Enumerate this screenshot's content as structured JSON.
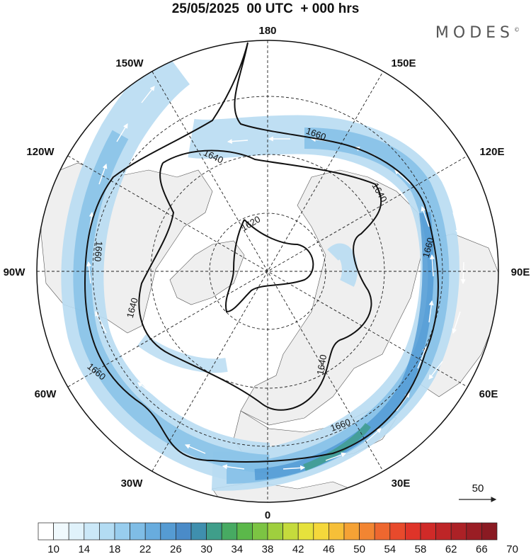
{
  "title": "25/05/2025  00 UTC  + 000 hrs",
  "brand": "MODES",
  "brand_mark": "©",
  "map": {
    "projection": "north polar stereographic",
    "longitude_labels": [
      {
        "text": "180",
        "lon": 180
      },
      {
        "text": "150E",
        "lon": 150
      },
      {
        "text": "120E",
        "lon": 120
      },
      {
        "text": "90E",
        "lon": 90
      },
      {
        "text": "60E",
        "lon": 60
      },
      {
        "text": "30E",
        "lon": 30
      },
      {
        "text": "0",
        "lon": 0
      },
      {
        "text": "30W",
        "lon": -30
      },
      {
        "text": "60W",
        "lon": -60
      },
      {
        "text": "90W",
        "lon": -90
      },
      {
        "text": "120W",
        "lon": -120
      },
      {
        "text": "150W",
        "lon": -150
      }
    ],
    "contour_labels": [
      "1660",
      "1640",
      "1620",
      "1660",
      "1640",
      "1660",
      "1640",
      "1660",
      "1640",
      "1660"
    ],
    "colors": {
      "land": "#efefef",
      "ocean": "#ffffff",
      "jet_light": "#b8dcf2",
      "jet_mid": "#7fbde6",
      "jet_dark": "#4f98d3",
      "contour": "#111111"
    }
  },
  "vector_legend": {
    "label": "50"
  },
  "colorbar": {
    "labels": [
      "10",
      "14",
      "18",
      "22",
      "26",
      "30",
      "34",
      "38",
      "42",
      "46",
      "50",
      "54",
      "58",
      "62",
      "66",
      "70"
    ],
    "colors": [
      "#ffffff",
      "#f0f9fd",
      "#e0f2fb",
      "#cbe8f8",
      "#b3dcf3",
      "#98cdee",
      "#7fbde6",
      "#68acde",
      "#559bd3",
      "#4a8bc8",
      "#3f8fae",
      "#3f9e8a",
      "#47aa62",
      "#5bb84a",
      "#7cc443",
      "#9fcf3e",
      "#c5db3c",
      "#e6e23c",
      "#f5d83b",
      "#f6bf38",
      "#f5a235",
      "#f28532",
      "#ee672f",
      "#e84a2c",
      "#df3429",
      "#d02a28",
      "#be2527",
      "#ac2126",
      "#9a1d24",
      "#8a1a22"
    ]
  }
}
